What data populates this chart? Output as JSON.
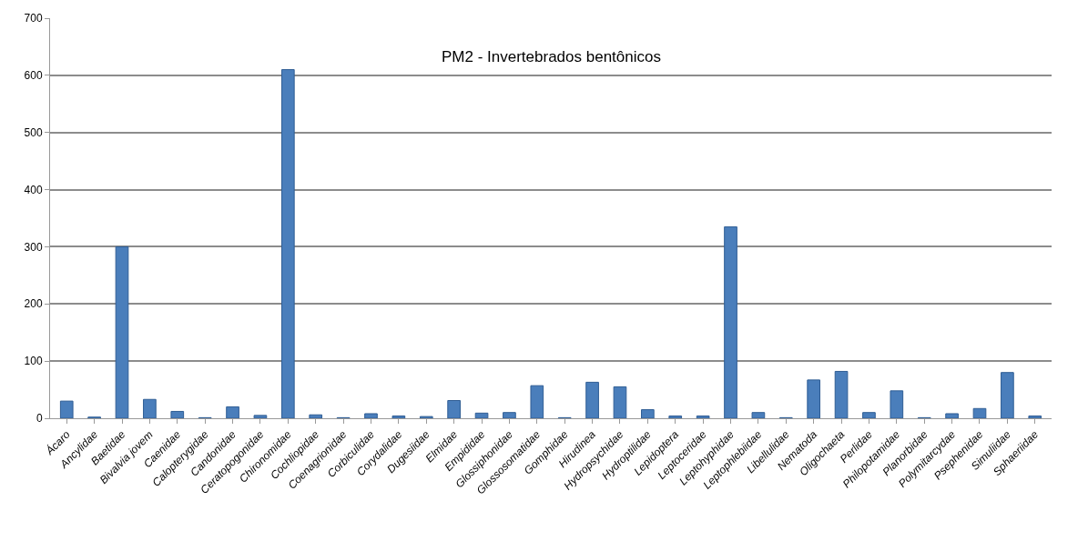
{
  "chart_data": {
    "type": "bar",
    "title": "PM2 - Invertebrados bentônicos",
    "categories": [
      "Ácaro",
      "Ancylidae",
      "Baetidae",
      "Bivalvia jovem",
      "Caenidae",
      "Calopterygidae",
      "Candonidae",
      "Ceratopogonidae",
      "Chironomidae",
      "Cochliopidae",
      "Coenagrionidae",
      "Corbiculidae",
      "Corydalidae",
      "Dugesiidae",
      "Elmidae",
      "Empididae",
      "Glossiphonidae",
      "Glossosomatidae",
      "Gomphidae",
      "Hirudinea",
      "Hydropsychidae",
      "Hydroptilidae",
      "Lepidoptera",
      "Leptoceridae",
      "Leptohyphidae",
      "Leptophlebiidae",
      "Libellulidae",
      "Nematoda",
      "Oligochaeta",
      "Perlidae",
      "Philopotamidae",
      "Planorbidae",
      "Polymitarcydae",
      "Psephenidae",
      "Simuliidae",
      "Sphaeriidae"
    ],
    "values": [
      30,
      2,
      300,
      33,
      12,
      1,
      20,
      5,
      610,
      6,
      1,
      8,
      4,
      3,
      31,
      9,
      10,
      57,
      1,
      63,
      55,
      15,
      4,
      4,
      335,
      10,
      1,
      67,
      82,
      10,
      48,
      1,
      8,
      17,
      80,
      4
    ],
    "color": "#4a7ebb",
    "ylim": [
      0,
      700
    ],
    "yticks": [
      0,
      100,
      200,
      300,
      400,
      500,
      600,
      700
    ],
    "grid": "y"
  }
}
